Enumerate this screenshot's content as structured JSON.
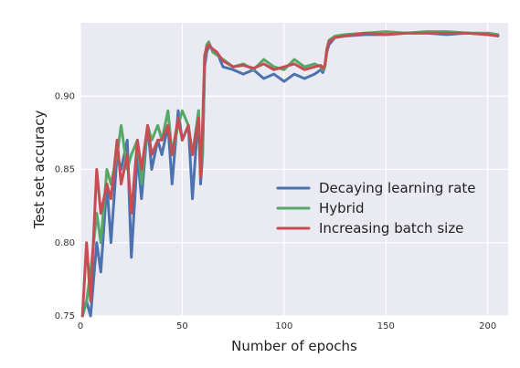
{
  "chart_data": {
    "type": "line",
    "title": "",
    "xlabel": "Number of epochs",
    "ylabel": "Test set accuracy",
    "xlim": [
      0,
      210
    ],
    "ylim": [
      0.75,
      0.95
    ],
    "xticks": [
      0,
      50,
      100,
      150,
      200
    ],
    "yticks": [
      0.75,
      0.8,
      0.85,
      0.9
    ],
    "xtick_labels": [
      "0",
      "50",
      "100",
      "150",
      "200"
    ],
    "ytick_labels": [
      "0.75",
      "0.80",
      "0.85",
      "0.90"
    ],
    "grid": true,
    "background_color": "#EAEAF2",
    "legend_position": "center-right",
    "series": [
      {
        "name": "Decaying learning rate",
        "color": "#4C72B0",
        "x": [
          1,
          3,
          5,
          8,
          10,
          13,
          15,
          18,
          20,
          23,
          25,
          28,
          30,
          33,
          35,
          38,
          40,
          43,
          45,
          48,
          50,
          53,
          55,
          58,
          59,
          60,
          61,
          62,
          63,
          65,
          67,
          70,
          75,
          80,
          85,
          90,
          95,
          100,
          105,
          110,
          115,
          118,
          119,
          120,
          121,
          122,
          125,
          130,
          140,
          150,
          160,
          170,
          180,
          190,
          200,
          205
        ],
        "y": [
          0.75,
          0.76,
          0.75,
          0.8,
          0.78,
          0.84,
          0.8,
          0.86,
          0.85,
          0.87,
          0.79,
          0.86,
          0.83,
          0.88,
          0.85,
          0.87,
          0.86,
          0.88,
          0.84,
          0.89,
          0.87,
          0.88,
          0.83,
          0.89,
          0.84,
          0.86,
          0.92,
          0.93,
          0.934,
          0.932,
          0.93,
          0.92,
          0.918,
          0.915,
          0.918,
          0.912,
          0.915,
          0.91,
          0.915,
          0.912,
          0.915,
          0.918,
          0.916,
          0.92,
          0.93,
          0.935,
          0.94,
          0.941,
          0.942,
          0.942,
          0.943,
          0.943,
          0.942,
          0.943,
          0.942,
          0.941
        ]
      },
      {
        "name": "Hybrid",
        "color": "#55A868",
        "x": [
          1,
          3,
          5,
          8,
          10,
          13,
          15,
          18,
          20,
          23,
          25,
          28,
          30,
          33,
          35,
          38,
          40,
          43,
          45,
          48,
          50,
          53,
          55,
          58,
          59,
          60,
          61,
          62,
          63,
          65,
          67,
          70,
          75,
          80,
          85,
          90,
          95,
          100,
          105,
          110,
          115,
          118,
          119,
          120,
          121,
          122,
          125,
          130,
          140,
          150,
          160,
          170,
          180,
          190,
          200,
          205
        ],
        "y": [
          0.75,
          0.76,
          0.78,
          0.82,
          0.8,
          0.85,
          0.84,
          0.86,
          0.88,
          0.85,
          0.86,
          0.87,
          0.84,
          0.88,
          0.87,
          0.88,
          0.87,
          0.89,
          0.86,
          0.88,
          0.89,
          0.88,
          0.86,
          0.89,
          0.85,
          0.86,
          0.925,
          0.935,
          0.937,
          0.93,
          0.928,
          0.925,
          0.92,
          0.922,
          0.918,
          0.925,
          0.92,
          0.918,
          0.925,
          0.92,
          0.922,
          0.92,
          0.918,
          0.92,
          0.932,
          0.938,
          0.941,
          0.942,
          0.943,
          0.944,
          0.943,
          0.944,
          0.944,
          0.943,
          0.943,
          0.942
        ]
      },
      {
        "name": "Increasing batch size",
        "color": "#C44E52",
        "x": [
          1,
          3,
          5,
          8,
          10,
          13,
          15,
          18,
          20,
          23,
          25,
          28,
          30,
          33,
          35,
          38,
          40,
          43,
          45,
          48,
          50,
          53,
          55,
          58,
          59,
          60,
          61,
          62,
          63,
          65,
          67,
          70,
          75,
          80,
          85,
          90,
          95,
          100,
          105,
          110,
          115,
          118,
          119,
          120,
          121,
          122,
          125,
          130,
          140,
          150,
          160,
          170,
          180,
          190,
          200,
          205
        ],
        "y": [
          0.75,
          0.8,
          0.76,
          0.85,
          0.82,
          0.84,
          0.83,
          0.87,
          0.84,
          0.86,
          0.82,
          0.87,
          0.85,
          0.88,
          0.86,
          0.87,
          0.87,
          0.88,
          0.86,
          0.885,
          0.87,
          0.88,
          0.86,
          0.885,
          0.845,
          0.88,
          0.928,
          0.933,
          0.935,
          0.932,
          0.93,
          0.924,
          0.92,
          0.921,
          0.919,
          0.922,
          0.918,
          0.92,
          0.922,
          0.918,
          0.92,
          0.921,
          0.919,
          0.921,
          0.932,
          0.937,
          0.94,
          0.941,
          0.943,
          0.942,
          0.943,
          0.943,
          0.943,
          0.943,
          0.942,
          0.941
        ]
      }
    ]
  }
}
